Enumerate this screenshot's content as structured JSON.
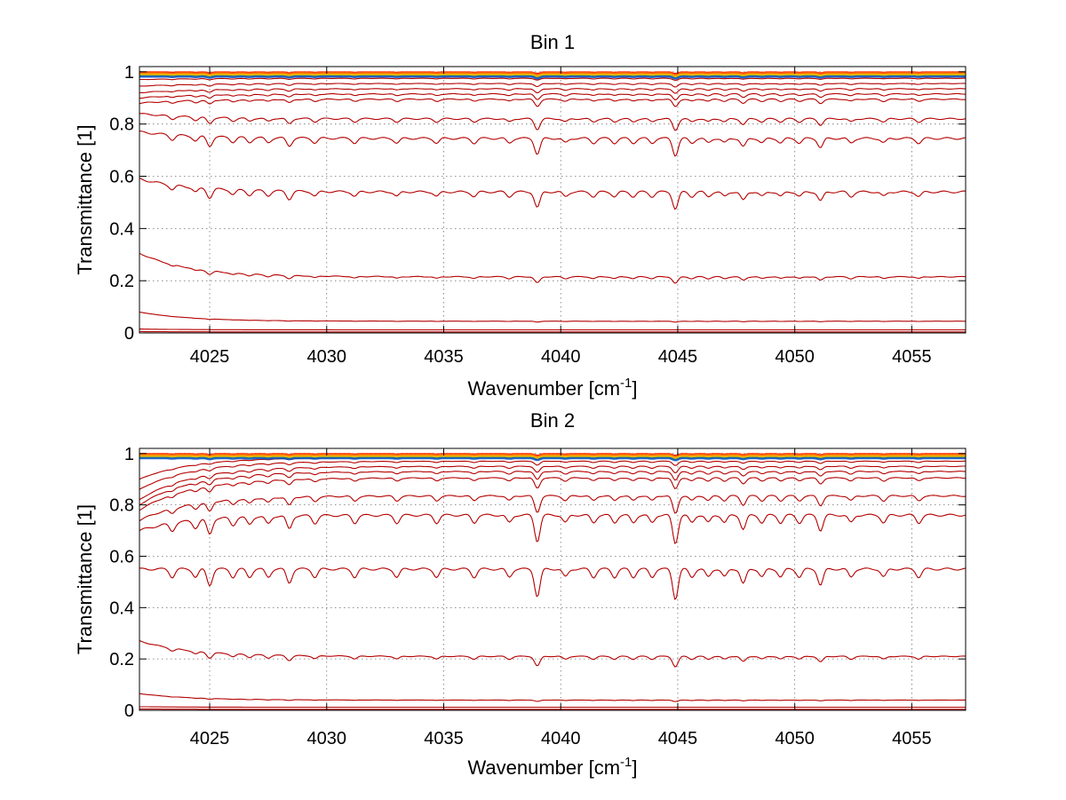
{
  "chart_data": [
    {
      "type": "line",
      "title": "Bin 1",
      "xlabel": "Wavenumber [cm",
      "xlabel_sup": "-1",
      "xlabel_end": "]",
      "ylabel": "Transmittance [1]",
      "xlim": [
        4022,
        4057.3
      ],
      "ylim": [
        0,
        1.02
      ],
      "xticks": [
        4025,
        4030,
        4035,
        4040,
        4045,
        4050,
        4055
      ],
      "xtick_labels": [
        "4025",
        "4030",
        "4035",
        "4040",
        "4045",
        "4050",
        "4055"
      ],
      "yticks": [
        0,
        0.2,
        0.4,
        0.6,
        0.8,
        1
      ],
      "ytick_labels": [
        "0",
        "0.2",
        "0.4",
        "0.6",
        "0.8",
        "1"
      ],
      "grid": true,
      "line_color": "#b40000",
      "top_colors": [
        "#ff2a00",
        "#ff6a00",
        "#ffaa00",
        "#c8c800",
        "#0050c8"
      ],
      "series": [
        {
          "values_desc": "near-unity",
          "base": 0.995,
          "start": 1.0,
          "absorb": 0.004
        },
        {
          "base": 0.985,
          "start": 0.99,
          "absorb": 0.06
        },
        {
          "base": 0.975,
          "start": 0.97,
          "absorb": 0.1
        },
        {
          "base": 0.955,
          "start": 0.945,
          "absorb": 0.18
        },
        {
          "base": 0.935,
          "start": 0.92,
          "absorb": 0.25
        },
        {
          "base": 0.915,
          "start": 0.9,
          "absorb": 0.33
        },
        {
          "base": 0.895,
          "start": 0.88,
          "absorb": 0.4
        },
        {
          "base": 0.82,
          "start": 0.84,
          "absorb": 0.6
        },
        {
          "base": 0.745,
          "start": 0.77,
          "absorb": 0.9
        },
        {
          "base": 0.54,
          "start": 0.59,
          "absorb": 0.9
        },
        {
          "base": 0.215,
          "start": 0.305,
          "absorb": 0.35
        },
        {
          "base": 0.045,
          "start": 0.08,
          "absorb": 0.05
        },
        {
          "base": 0.012,
          "start": 0.015,
          "absorb": 0.0
        },
        {
          "base": 0.004,
          "start": 0.005,
          "absorb": 0.0
        }
      ]
    },
    {
      "type": "line",
      "title": "Bin 2",
      "xlabel": "Wavenumber [cm",
      "xlabel_sup": "-1",
      "xlabel_end": "]",
      "ylabel": "Transmittance [1]",
      "xlim": [
        4022,
        4057.3
      ],
      "ylim": [
        0,
        1.02
      ],
      "xticks": [
        4025,
        4030,
        4035,
        4040,
        4045,
        4050,
        4055
      ],
      "xtick_labels": [
        "4025",
        "4030",
        "4035",
        "4040",
        "4045",
        "4050",
        "4055"
      ],
      "yticks": [
        0,
        0.2,
        0.4,
        0.6,
        0.8,
        1
      ],
      "ytick_labels": [
        "0",
        "0.2",
        "0.4",
        "0.6",
        "0.8",
        "1"
      ],
      "grid": true,
      "line_color": "#b40000",
      "top_colors": [
        "#ff2a00",
        "#ff6a00",
        "#ffaa00",
        "#c8c800",
        "#0050c8"
      ],
      "series": [
        {
          "base": 0.995,
          "start": 0.99,
          "absorb": 0.01
        },
        {
          "base": 0.985,
          "start": 0.9,
          "absorb": 0.08
        },
        {
          "base": 0.97,
          "start": 0.86,
          "absorb": 0.14
        },
        {
          "base": 0.95,
          "start": 0.82,
          "absorb": 0.22
        },
        {
          "base": 0.93,
          "start": 0.8,
          "absorb": 0.3
        },
        {
          "base": 0.905,
          "start": 0.78,
          "absorb": 0.38
        },
        {
          "base": 0.835,
          "start": 0.74,
          "absorb": 0.6
        },
        {
          "base": 0.76,
          "start": 0.7,
          "absorb": 0.95
        },
        {
          "base": 0.55,
          "start": 0.55,
          "absorb": 1.0
        },
        {
          "base": 0.21,
          "start": 0.27,
          "absorb": 0.35
        },
        {
          "base": 0.04,
          "start": 0.065,
          "absorb": 0.05
        },
        {
          "base": 0.012,
          "start": 0.014,
          "absorb": 0.0
        },
        {
          "base": 0.004,
          "start": 0.005,
          "absorb": 0.0
        }
      ]
    }
  ]
}
